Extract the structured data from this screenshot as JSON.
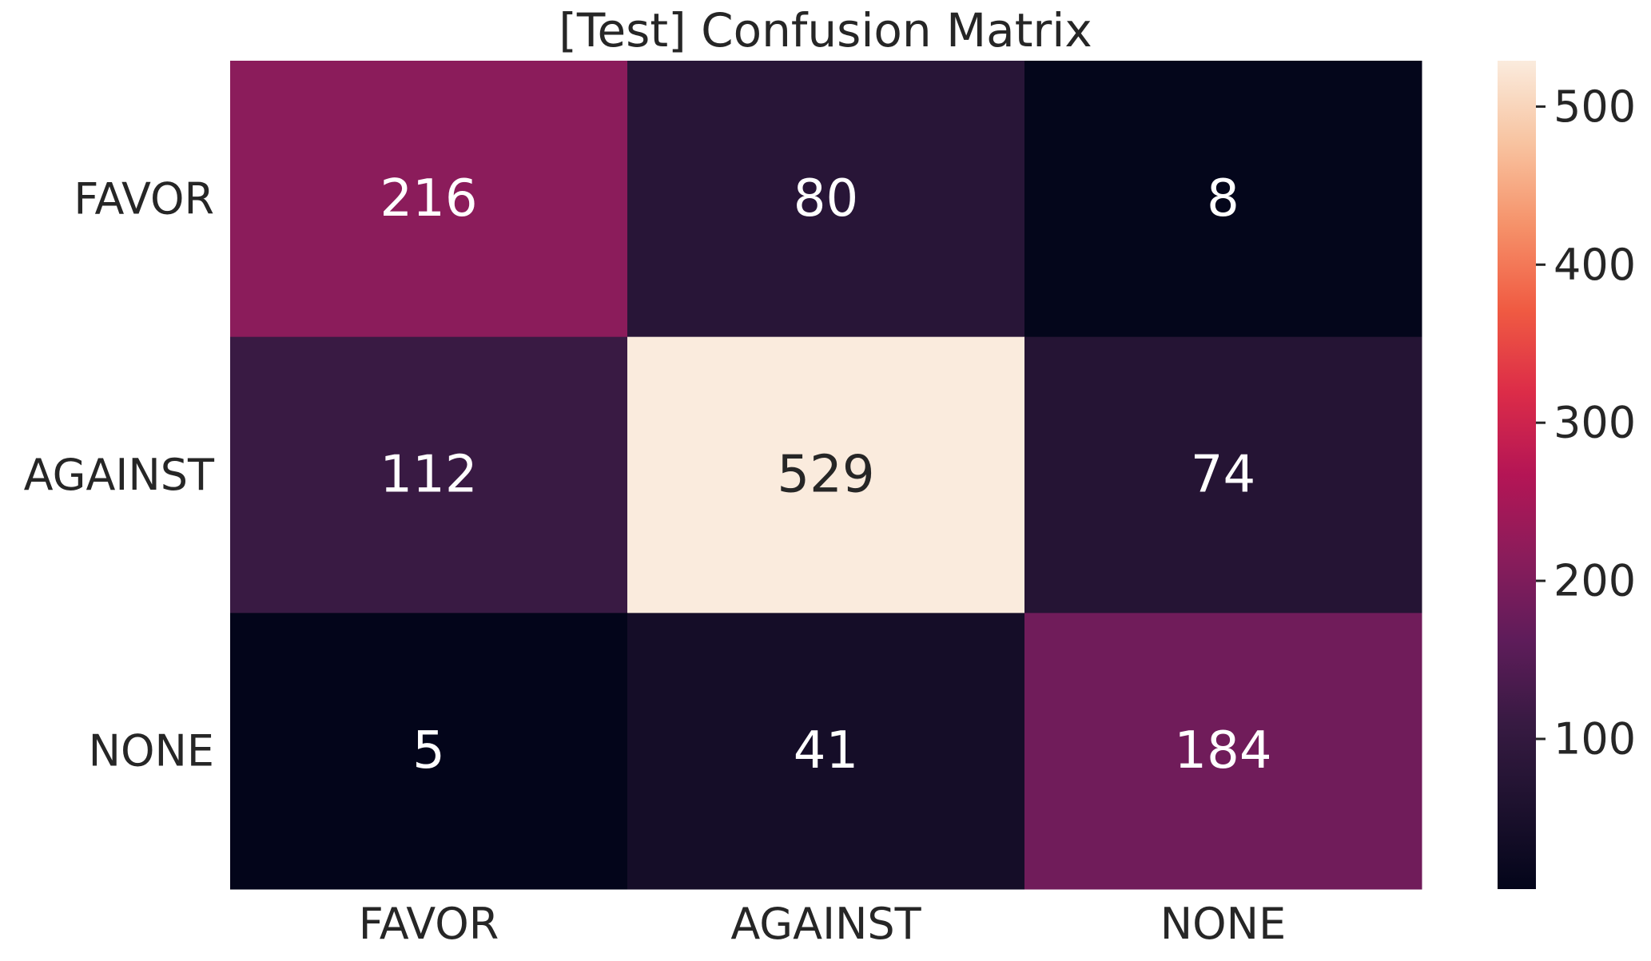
{
  "chart_data": {
    "type": "heatmap",
    "title": "[Test] Confusion Matrix",
    "xlabel": "",
    "ylabel": "",
    "x_categories": [
      "FAVOR",
      "AGAINST",
      "NONE"
    ],
    "y_categories": [
      "FAVOR",
      "AGAINST",
      "NONE"
    ],
    "values": [
      [
        216,
        80,
        8
      ],
      [
        112,
        529,
        74
      ],
      [
        5,
        41,
        184
      ]
    ],
    "colormap": "rocket",
    "colorbar": {
      "vmin": 5,
      "vmax": 529,
      "ticks": [
        100,
        200,
        300,
        400,
        500
      ]
    },
    "grid": false
  }
}
